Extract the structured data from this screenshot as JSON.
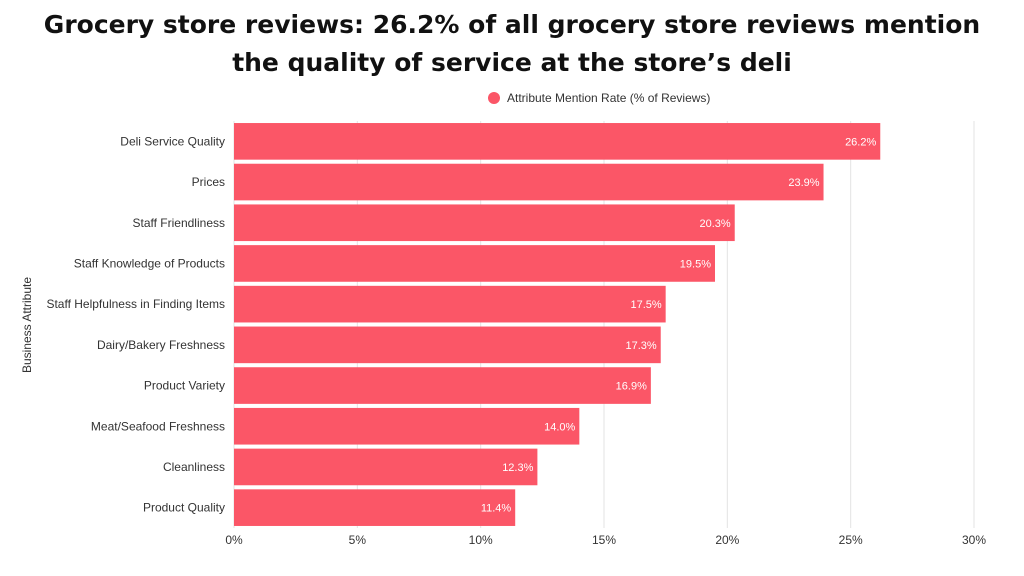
{
  "title": {
    "line1": "Grocery store reviews: 26.2% of all grocery store reviews mention",
    "line2": "the quality of service at the store’s deli"
  },
  "legend": {
    "label": "Attribute Mention Rate (% of Reviews)",
    "placement": "top-center"
  },
  "colors": {
    "bar": "#fb5667",
    "grid": "#e3e3e3",
    "value_label": "#ffffff"
  },
  "chart_data": {
    "type": "bar",
    "orientation": "horizontal",
    "title": "Grocery store reviews: 26.2% of all grocery store reviews mention the quality of service at the store’s deli",
    "xlabel": "",
    "ylabel": "Business Attribute",
    "xlim": [
      0,
      30
    ],
    "x_ticks": [
      "0%",
      "5%",
      "10%",
      "15%",
      "20%",
      "25%",
      "30%"
    ],
    "x_tick_values": [
      0,
      5,
      10,
      15,
      20,
      25,
      30
    ],
    "grid": true,
    "categories": [
      "Deli Service Quality",
      "Prices",
      "Staff Friendliness",
      "Staff Knowledge of Products",
      "Staff Helpfulness in Finding Items",
      "Dairy/Bakery Freshness",
      "Product Variety",
      "Meat/Seafood Freshness",
      "Cleanliness",
      "Product Quality"
    ],
    "series": [
      {
        "name": "Attribute Mention Rate (% of Reviews)",
        "values": [
          26.2,
          23.9,
          20.3,
          19.5,
          17.5,
          17.3,
          16.9,
          14.0,
          12.3,
          11.4
        ],
        "labels": [
          "26.2%",
          "23.9%",
          "20.3%",
          "19.5%",
          "17.5%",
          "17.3%",
          "16.9%",
          "14.0%",
          "12.3%",
          "11.4%"
        ]
      }
    ]
  }
}
